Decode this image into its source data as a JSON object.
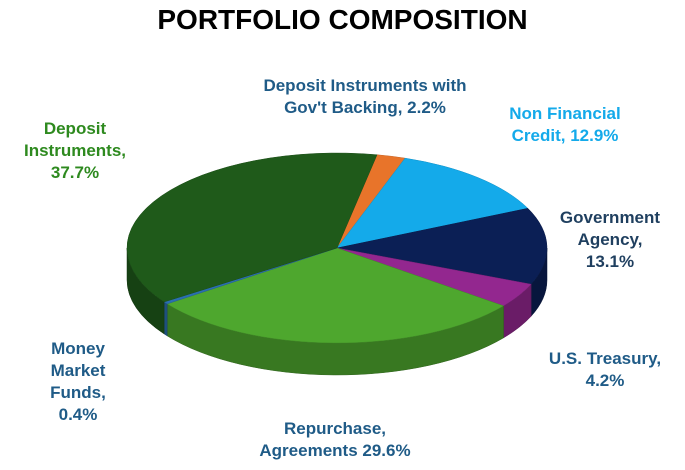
{
  "chart_data": {
    "type": "pie",
    "title": "PORTFOLIO COMPOSITION",
    "categories": [
      "Deposit Instruments with Gov't Backing,",
      "Non Financial Credit,",
      "Government Agency,",
      "U.S. Treasury,",
      "Repurchase, Agreements",
      "Money Market Funds,",
      "Deposit Instruments,"
    ],
    "values": [
      2.2,
      12.9,
      13.1,
      4.2,
      29.6,
      0.4,
      37.7
    ],
    "value_labels": [
      "2.2%",
      "12.9%",
      "13.1%",
      "4.2%",
      "29.6%",
      "0.4%",
      "37.7%"
    ],
    "colors": [
      "#e8742a",
      "#14aaea",
      "#0b1f55",
      "#93278f",
      "#4ea72e",
      "#2a6fb0",
      "#1f5a1a"
    ],
    "label_colors": [
      "#1f5b87",
      "#14aaea",
      "#1f3f5f",
      "#1f5b87",
      "#1f5b87",
      "#1f5b87",
      "#2e8a1f"
    ],
    "three_d": true
  }
}
